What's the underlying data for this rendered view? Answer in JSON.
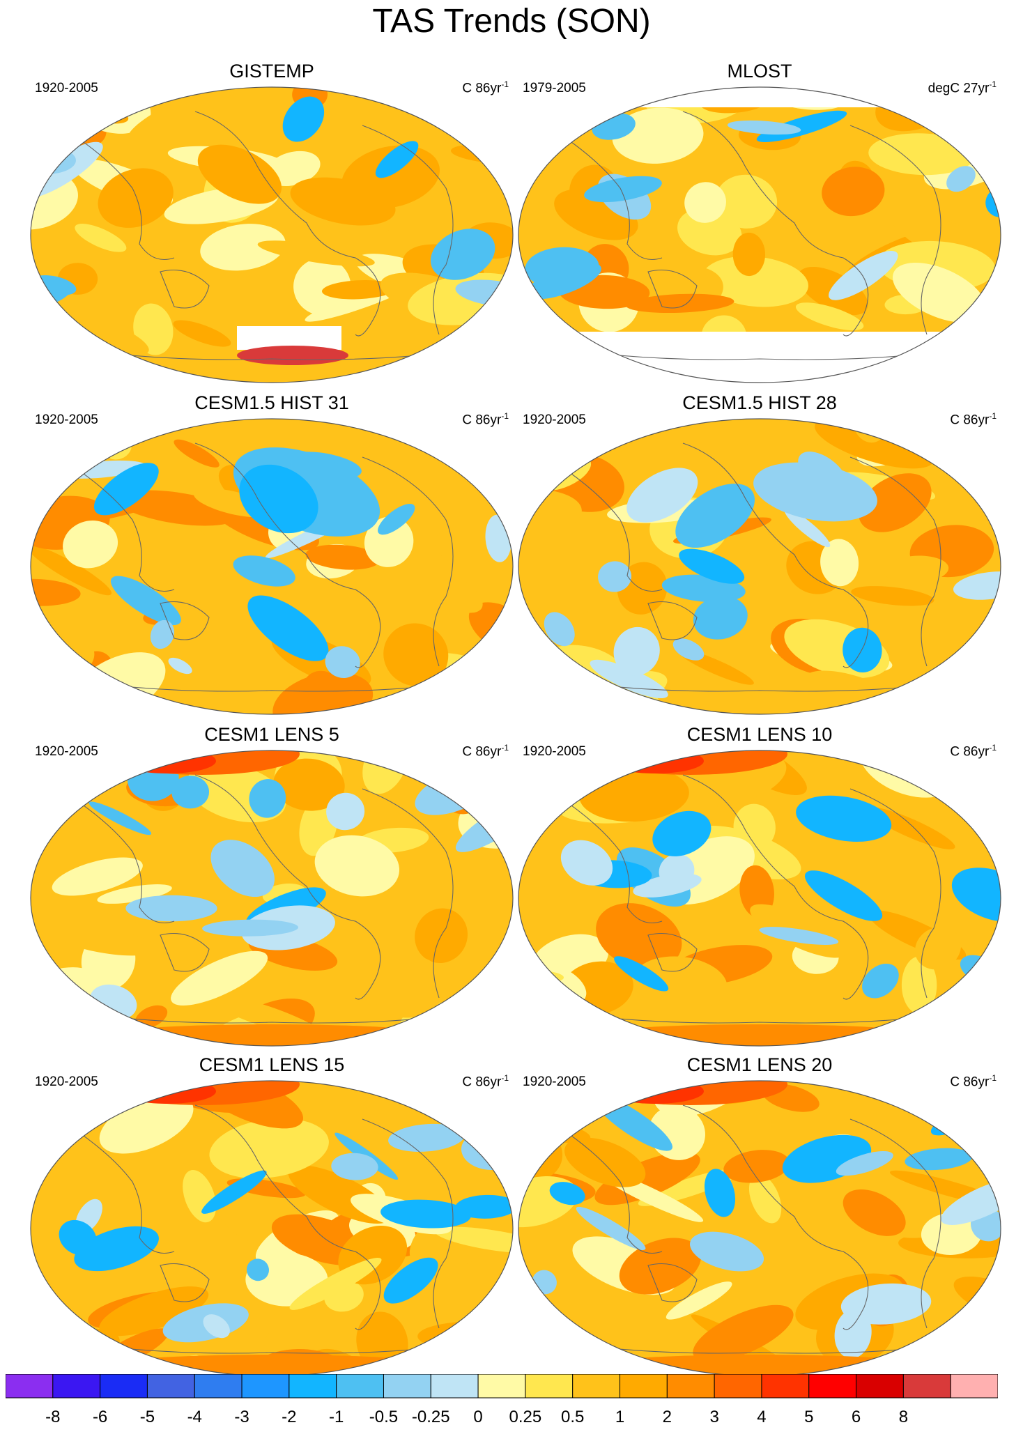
{
  "title": "TAS Trends (SON)",
  "panels": [
    {
      "name": "GISTEMP",
      "period": "1920-2005",
      "units": "C 86yr",
      "units_sup": "-1",
      "fill": "warm",
      "mask_top": true,
      "mask_bottom": false
    },
    {
      "name": "MLOST",
      "period": "1979-2005",
      "units": "degC 27yr",
      "units_sup": "-1",
      "fill": "warm",
      "mask_top": true,
      "mask_bottom": true
    },
    {
      "name": "CESM1.5 HIST 31",
      "period": "1920-2005",
      "units": "C 86yr",
      "units_sup": "-1",
      "fill": "warm"
    },
    {
      "name": "CESM1.5 HIST 28",
      "period": "1920-2005",
      "units": "C 86yr",
      "units_sup": "-1",
      "fill": "warm"
    },
    {
      "name": "CESM1 LENS 5",
      "period": "1920-2005",
      "units": "C 86yr",
      "units_sup": "-1",
      "fill": "warm"
    },
    {
      "name": "CESM1 LENS 10",
      "period": "1920-2005",
      "units": "C 86yr",
      "units_sup": "-1",
      "fill": "warm"
    },
    {
      "name": "CESM1 LENS 15",
      "period": "1920-2005",
      "units": "C 86yr",
      "units_sup": "-1",
      "fill": "warm"
    },
    {
      "name": "CESM1 LENS 20",
      "period": "1920-2005",
      "units": "C 86yr",
      "units_sup": "-1",
      "fill": "warm"
    }
  ],
  "colorbar": {
    "colors": [
      "#8b2ef0",
      "#3b17f2",
      "#1a2cf5",
      "#4263e2",
      "#2f7df0",
      "#1e96ff",
      "#12b5ff",
      "#4ec0f2",
      "#93d2f2",
      "#bfe4f5",
      "#fffaa6",
      "#ffe74f",
      "#ffc21a",
      "#ffaa00",
      "#ff8c00",
      "#ff6600",
      "#ff3300",
      "#ff0000",
      "#d90000",
      "#d93a3a",
      "#ffb0b0"
    ],
    "labels": [
      "-8",
      "-6",
      "-5",
      "-4",
      "-3",
      "-2",
      "-1",
      "-0.5",
      "-0.25",
      "0",
      "0.25",
      "0.5",
      "1",
      "2",
      "3",
      "4",
      "5",
      "6",
      "8"
    ]
  }
}
